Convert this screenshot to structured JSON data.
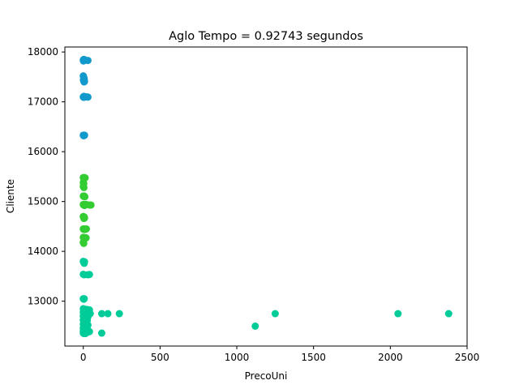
{
  "chart_data": {
    "type": "scatter",
    "title": "Aglo Tempo = 0.92743 segundos",
    "xlabel": "PrecoUni",
    "ylabel": "Cliente",
    "xlim": [
      -120,
      2500
    ],
    "ylim": [
      12100,
      18100
    ],
    "xticks": [
      0,
      500,
      1000,
      1500,
      2000,
      2500
    ],
    "yticks": [
      13000,
      14000,
      15000,
      16000,
      17000,
      18000
    ],
    "grid": false,
    "legend": "none",
    "series": [
      {
        "color": "#1199cc",
        "points": [
          [
            0,
            17840
          ],
          [
            1,
            17820
          ],
          [
            3,
            17850
          ],
          [
            5,
            17830
          ],
          [
            8,
            17845
          ],
          [
            12,
            17835
          ],
          [
            30,
            17830
          ],
          [
            0,
            17520
          ],
          [
            2,
            17500
          ],
          [
            4,
            17480
          ],
          [
            6,
            17460
          ],
          [
            1,
            17440
          ],
          [
            3,
            17420
          ],
          [
            5,
            17400
          ],
          [
            8,
            17410
          ],
          [
            0,
            17100
          ],
          [
            2,
            17090
          ],
          [
            4,
            17110
          ],
          [
            6,
            17100
          ],
          [
            10,
            17095
          ],
          [
            20,
            17100
          ],
          [
            30,
            17095
          ],
          [
            0,
            16330
          ],
          [
            2,
            16320
          ],
          [
            4,
            16330
          ],
          [
            6,
            16325
          ],
          [
            8,
            16330
          ]
        ]
      },
      {
        "color": "#33cc33",
        "points": [
          [
            0,
            15480
          ],
          [
            4,
            15470
          ],
          [
            8,
            15480
          ],
          [
            12,
            15475
          ],
          [
            0,
            15380
          ],
          [
            3,
            15360
          ],
          [
            0,
            15300
          ],
          [
            4,
            15280
          ],
          [
            0,
            15110
          ],
          [
            3,
            15100
          ],
          [
            6,
            15110
          ],
          [
            10,
            15095
          ],
          [
            0,
            14940
          ],
          [
            2,
            14930
          ],
          [
            5,
            14940
          ],
          [
            8,
            14920
          ],
          [
            12,
            14935
          ],
          [
            20,
            14940
          ],
          [
            40,
            14930
          ],
          [
            50,
            14930
          ],
          [
            0,
            14700
          ],
          [
            2,
            14680
          ],
          [
            4,
            14660
          ],
          [
            6,
            14690
          ],
          [
            8,
            14670
          ],
          [
            0,
            14450
          ],
          [
            3,
            14440
          ],
          [
            6,
            14450
          ],
          [
            10,
            14440
          ],
          [
            15,
            14445
          ],
          [
            20,
            14450
          ],
          [
            0,
            14280
          ],
          [
            3,
            14270
          ],
          [
            6,
            14260
          ],
          [
            12,
            14275
          ],
          [
            18,
            14270
          ],
          [
            0,
            14180
          ],
          [
            3,
            14160
          ]
        ]
      },
      {
        "color": "#00cc99",
        "points": [
          [
            0,
            13800
          ],
          [
            3,
            13780
          ],
          [
            6,
            13760
          ],
          [
            8,
            13790
          ],
          [
            0,
            13540
          ],
          [
            5,
            13530
          ],
          [
            30,
            13530
          ],
          [
            40,
            13535
          ],
          [
            0,
            13050
          ],
          [
            3,
            13040
          ],
          [
            6,
            13050
          ],
          [
            0,
            12850
          ],
          [
            3,
            12830
          ],
          [
            6,
            12840
          ],
          [
            10,
            12820
          ],
          [
            15,
            12830
          ],
          [
            20,
            12835
          ],
          [
            25,
            12820
          ],
          [
            30,
            12830
          ],
          [
            40,
            12825
          ],
          [
            0,
            12780
          ],
          [
            2,
            12760
          ],
          [
            4,
            12770
          ],
          [
            6,
            12750
          ],
          [
            9,
            12760
          ],
          [
            12,
            12765
          ],
          [
            16,
            12750
          ],
          [
            20,
            12760
          ],
          [
            28,
            12755
          ],
          [
            35,
            12760
          ],
          [
            45,
            12750
          ],
          [
            0,
            12700
          ],
          [
            3,
            12690
          ],
          [
            6,
            12680
          ],
          [
            10,
            12700
          ],
          [
            14,
            12690
          ],
          [
            18,
            12680
          ],
          [
            24,
            12695
          ],
          [
            30,
            12685
          ],
          [
            0,
            12620
          ],
          [
            3,
            12600
          ],
          [
            6,
            12610
          ],
          [
            10,
            12620
          ],
          [
            14,
            12600
          ],
          [
            20,
            12610
          ],
          [
            26,
            12615
          ],
          [
            0,
            12540
          ],
          [
            3,
            12530
          ],
          [
            6,
            12520
          ],
          [
            10,
            12540
          ],
          [
            15,
            12525
          ],
          [
            22,
            12535
          ],
          [
            30,
            12520
          ],
          [
            0,
            12460
          ],
          [
            3,
            12450
          ],
          [
            7,
            12440
          ],
          [
            12,
            12460
          ],
          [
            18,
            12445
          ],
          [
            25,
            12450
          ],
          [
            0,
            12400
          ],
          [
            3,
            12390
          ],
          [
            6,
            12380
          ],
          [
            10,
            12400
          ],
          [
            16,
            12385
          ],
          [
            22,
            12395
          ],
          [
            30,
            12380
          ],
          [
            40,
            12390
          ],
          [
            0,
            12360
          ],
          [
            4,
            12350
          ],
          [
            8,
            12360
          ],
          [
            14,
            12350
          ],
          [
            120,
            12750
          ],
          [
            160,
            12750
          ],
          [
            235,
            12750
          ],
          [
            120,
            12360
          ],
          [
            1120,
            12500
          ],
          [
            1250,
            12750
          ],
          [
            2050,
            12750
          ],
          [
            2380,
            12750
          ]
        ]
      }
    ]
  }
}
